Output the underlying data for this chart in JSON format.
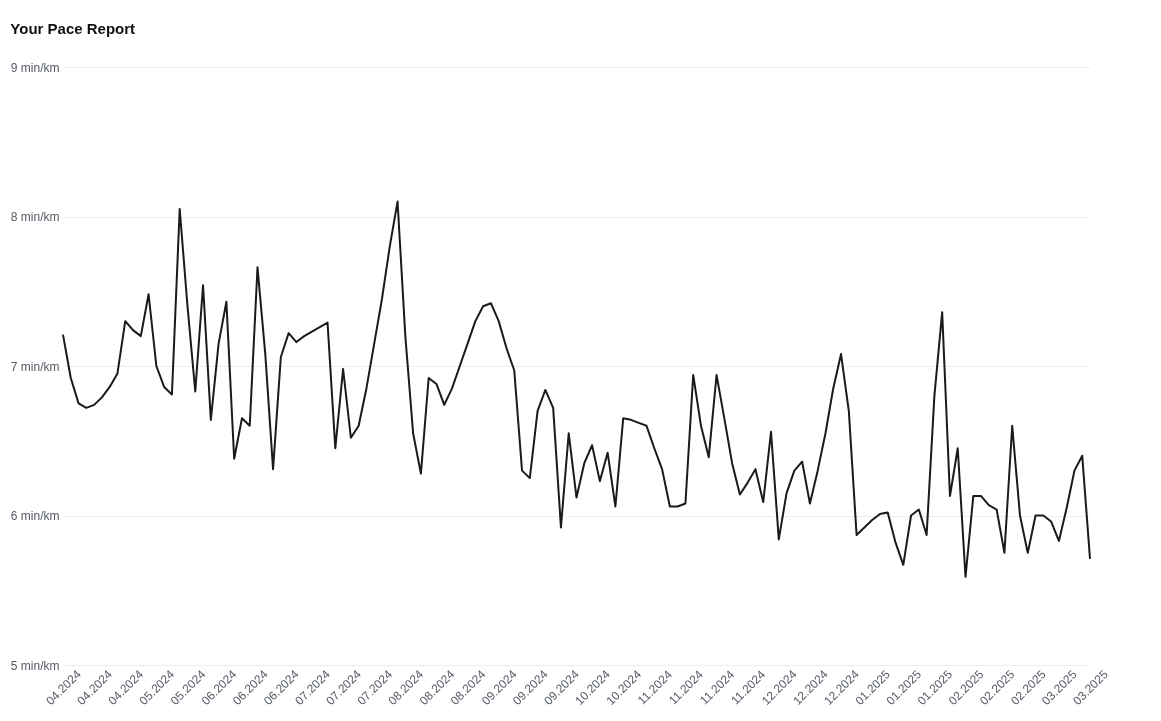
{
  "chart_data": {
    "type": "line",
    "title": "Your Pace Report",
    "categories": [
      "04.2024",
      null,
      null,
      null,
      "04.2024",
      null,
      null,
      null,
      "04.2024",
      null,
      null,
      null,
      "05.2024",
      null,
      null,
      null,
      "05.2024",
      null,
      null,
      null,
      "06.2024",
      null,
      null,
      null,
      "06.2024",
      null,
      null,
      null,
      "06.2024",
      null,
      null,
      null,
      "07.2024",
      null,
      null,
      null,
      "07.2024",
      null,
      null,
      null,
      "07.2024",
      null,
      null,
      null,
      "08.2024",
      null,
      null,
      null,
      "08.2024",
      null,
      null,
      null,
      "08.2024",
      null,
      null,
      null,
      "09.2024",
      null,
      null,
      null,
      "09.2024",
      null,
      null,
      null,
      "09.2024",
      null,
      null,
      null,
      "10.2024",
      null,
      null,
      null,
      "10.2024",
      null,
      null,
      null,
      "11.2024",
      null,
      null,
      null,
      "11.2024",
      null,
      null,
      null,
      "11.2024",
      null,
      null,
      null,
      "11.2024",
      null,
      null,
      null,
      "12.2024",
      null,
      null,
      null,
      "12.2024",
      null,
      null,
      null,
      "12.2024",
      null,
      null,
      null,
      "01.2025",
      null,
      null,
      null,
      "01.2025",
      null,
      null,
      null,
      "01.2025",
      null,
      null,
      null,
      "02.2025",
      null,
      null,
      null,
      "02.2025",
      null,
      null,
      null,
      "02.2025",
      null,
      null,
      null,
      "03.2025",
      null,
      null,
      null,
      "03.2025"
    ],
    "series": [
      {
        "color": "#1a1a1a",
        "values": [
          7.21,
          6.92,
          6.75,
          6.72,
          6.74,
          6.79,
          6.86,
          6.95,
          7.3,
          7.24,
          7.2,
          7.48,
          7.0,
          6.86,
          6.81,
          8.05,
          7.4,
          6.83,
          7.54,
          6.64,
          7.15,
          7.43,
          6.38,
          6.65,
          6.6,
          7.66,
          7.08,
          6.31,
          7.06,
          7.22,
          7.16,
          7.2,
          7.23,
          7.26,
          7.29,
          6.45,
          6.98,
          6.52,
          6.6,
          6.85,
          7.15,
          7.45,
          7.8,
          8.1,
          7.2,
          6.55,
          6.28,
          6.92,
          6.88,
          6.74,
          6.85,
          7.0,
          7.15,
          7.3,
          7.4,
          7.42,
          7.3,
          7.12,
          6.97,
          6.3,
          6.25,
          6.7,
          6.84,
          6.72,
          5.92,
          6.55,
          6.12,
          6.35,
          6.47,
          6.23,
          6.42,
          6.06,
          6.65,
          6.64,
          6.62,
          6.6,
          6.45,
          6.31,
          6.06,
          6.06,
          6.08,
          6.94,
          6.6,
          6.39,
          6.94,
          6.65,
          6.35,
          6.14,
          6.22,
          6.31,
          6.09,
          6.56,
          5.84,
          6.15,
          6.3,
          6.36,
          6.08,
          6.3,
          6.55,
          6.85,
          7.08,
          6.7,
          5.87,
          5.92,
          5.97,
          6.01,
          6.02,
          5.82,
          5.67,
          6.0,
          6.04,
          5.87,
          6.8,
          7.36,
          6.13,
          6.45,
          5.59,
          6.13,
          6.13,
          6.07,
          6.04,
          5.75,
          6.6,
          6.0,
          5.75,
          6.0,
          6.0,
          5.96,
          5.83,
          6.05,
          6.3,
          6.4,
          5.71
        ]
      }
    ],
    "ylim": [
      5,
      9
    ],
    "yticks": [
      {
        "value": 5,
        "label": "5 min/km"
      },
      {
        "value": 6,
        "label": "6 min/km"
      },
      {
        "value": 7,
        "label": "7 min/km"
      },
      {
        "value": 8,
        "label": "8 min/km"
      },
      {
        "value": 9,
        "label": "9 min/km"
      }
    ],
    "grid": "y",
    "line_style": "solid",
    "marker": "none"
  }
}
